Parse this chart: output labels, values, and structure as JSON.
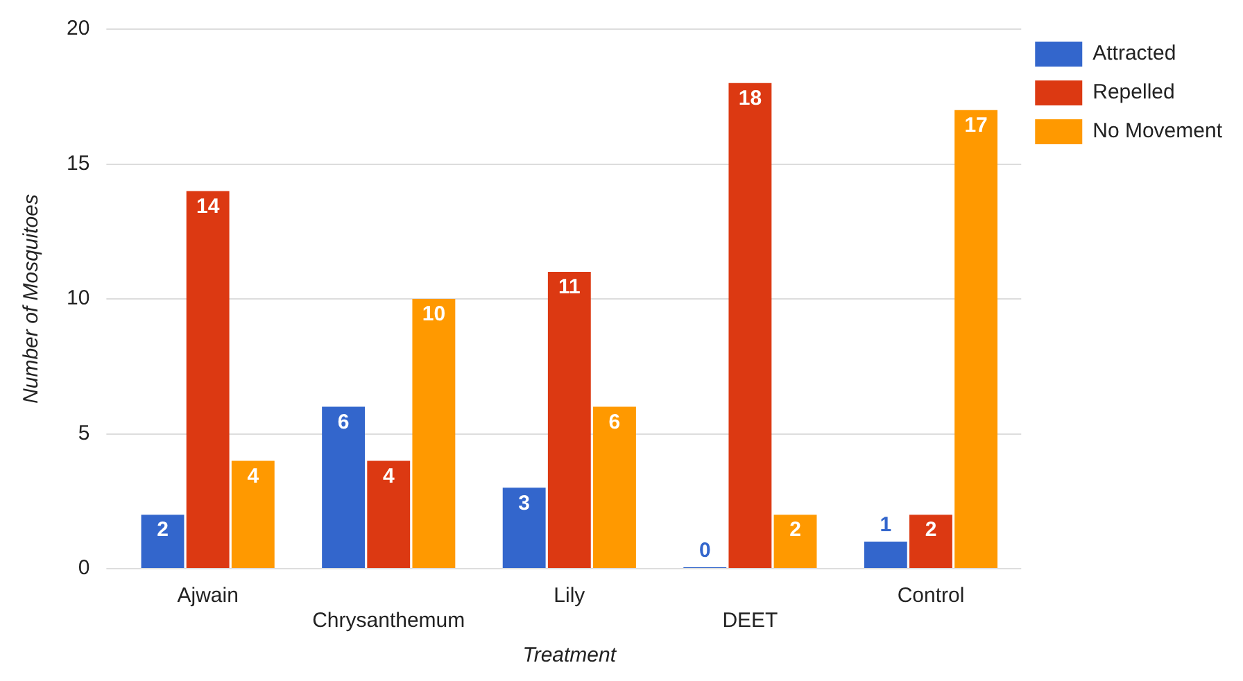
{
  "chart_data": {
    "type": "bar",
    "xlabel": "Treatment",
    "ylabel": "Number of Mosquitoes",
    "categories": [
      "Ajwain",
      "Chrysanthemum",
      "Lily",
      "DEET",
      "Control"
    ],
    "series": [
      {
        "name": "Attracted",
        "color": "#3366cc",
        "values": [
          2,
          6,
          3,
          0,
          1
        ]
      },
      {
        "name": "Repelled",
        "color": "#dc3912",
        "values": [
          14,
          4,
          11,
          18,
          2
        ]
      },
      {
        "name": "No Movement",
        "color": "#ff9900",
        "values": [
          4,
          10,
          6,
          2,
          17
        ]
      }
    ],
    "ylim": [
      0,
      20
    ],
    "yticks": [
      0,
      5,
      10,
      15,
      20
    ],
    "grid": "y",
    "legend": "right",
    "data_labels": true
  }
}
